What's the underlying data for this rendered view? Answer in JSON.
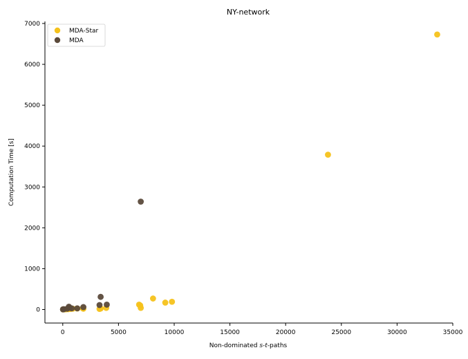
{
  "chart_data": {
    "type": "scatter",
    "title": "NY-network",
    "xlabel_parts": [
      "Non-dominated ",
      "s",
      "-",
      "t",
      "-paths"
    ],
    "ylabel": "Computation Time [s]",
    "xlim": [
      -1600,
      35000
    ],
    "ylim": [
      -330,
      7050
    ],
    "xticks": [
      0,
      5000,
      10000,
      15000,
      20000,
      25000,
      30000,
      35000
    ],
    "yticks": [
      0,
      1000,
      2000,
      3000,
      4000,
      5000,
      6000,
      7000
    ],
    "legend_position": "top-left",
    "series": [
      {
        "name": "MDA-Star",
        "color": "#f5c21b",
        "points": [
          [
            30,
            3
          ],
          [
            150,
            4
          ],
          [
            300,
            6
          ],
          [
            500,
            10
          ],
          [
            700,
            15
          ],
          [
            900,
            20
          ],
          [
            1300,
            25
          ],
          [
            1800,
            30
          ],
          [
            1850,
            20
          ],
          [
            3300,
            15
          ],
          [
            3400,
            25
          ],
          [
            3900,
            40
          ],
          [
            6850,
            120
          ],
          [
            6950,
            100
          ],
          [
            7000,
            40
          ],
          [
            8100,
            270
          ],
          [
            9200,
            170
          ],
          [
            9800,
            190
          ],
          [
            23800,
            3790
          ],
          [
            33600,
            6730
          ]
        ]
      },
      {
        "name": "MDA",
        "color": "#5b4a3b",
        "points": [
          [
            20,
            5
          ],
          [
            100,
            8
          ],
          [
            400,
            20
          ],
          [
            550,
            70
          ],
          [
            600,
            45
          ],
          [
            800,
            30
          ],
          [
            1300,
            30
          ],
          [
            1850,
            60
          ],
          [
            3300,
            110
          ],
          [
            3400,
            310
          ],
          [
            3950,
            120
          ],
          [
            7000,
            2640
          ]
        ]
      }
    ]
  }
}
